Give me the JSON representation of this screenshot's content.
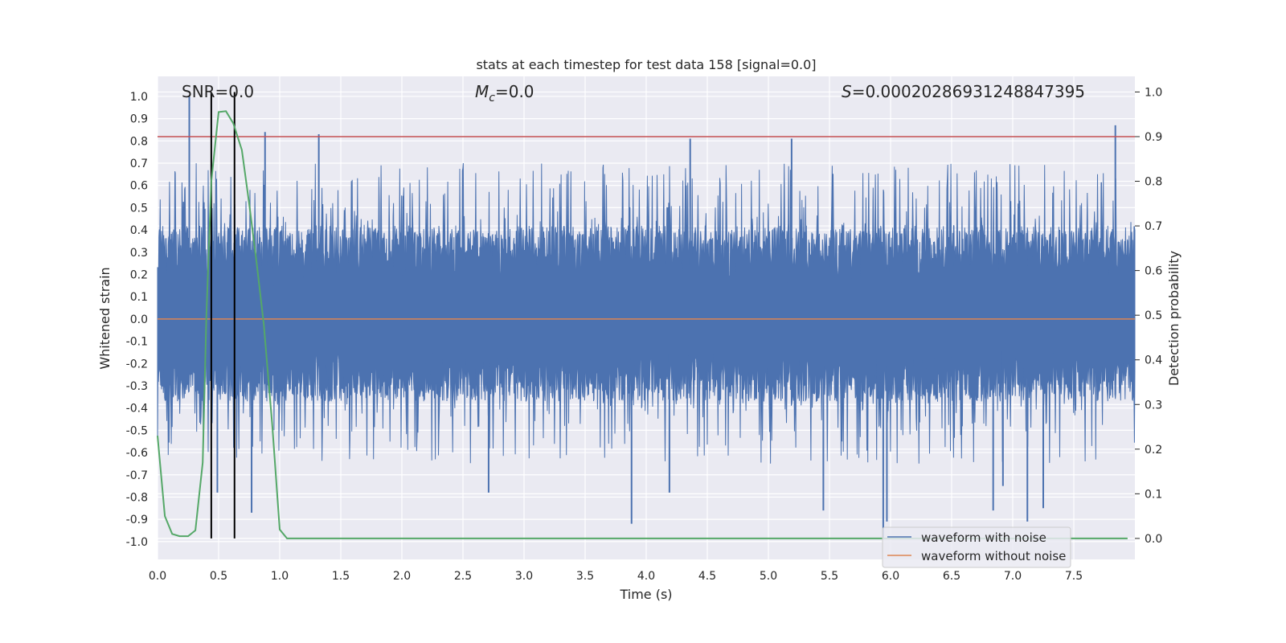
{
  "chart_data": {
    "type": "line",
    "title": "stats at each timestep for test data 158 [signal=0.0]",
    "xlabel": "Time (s)",
    "ylabel_left": "Whitened strain",
    "ylabel_right": "Detection probability",
    "xlim": [
      0.0,
      8.0
    ],
    "ylim_left": [
      -1.08,
      1.09
    ],
    "ylim_right": [
      -0.047,
      1.035
    ],
    "x_ticks": [
      "0.0",
      "0.5",
      "1.0",
      "1.5",
      "2.0",
      "2.5",
      "3.0",
      "3.5",
      "4.0",
      "4.5",
      "5.0",
      "5.5",
      "6.0",
      "6.5",
      "7.0",
      "7.5"
    ],
    "y_ticks_left": [
      "-1.0",
      "-0.9",
      "-0.8",
      "-0.7",
      "-0.6",
      "-0.5",
      "-0.4",
      "-0.3",
      "-0.2",
      "-0.1",
      "0.0",
      "0.1",
      "0.2",
      "0.3",
      "0.4",
      "0.5",
      "0.6",
      "0.7",
      "0.8",
      "0.9",
      "1.0"
    ],
    "y_ticks_right": [
      "0.0",
      "0.1",
      "0.2",
      "0.3",
      "0.4",
      "0.5",
      "0.6",
      "0.7",
      "0.8",
      "0.9",
      "1.0"
    ],
    "grid": true,
    "annotations": {
      "snr": "SNR=0.0",
      "mc_symbol": "M",
      "mc_sub": "c",
      "mc_value": "=0.0",
      "s_symbol": "S",
      "s_value": "=0.00020286931248847395"
    },
    "threshold_right": 0.9,
    "zero_line": 0.0,
    "vlines_x": [
      0.44,
      0.63
    ],
    "series": [
      {
        "name": "waveform with noise",
        "color": "#4c72b0",
        "kind": "noise",
        "n_samples": 2200,
        "typical_max": 0.42,
        "typical_min": -0.37
      },
      {
        "name": "waveform without noise",
        "color": "#dd8452",
        "kind": "flat",
        "value": 0.0
      },
      {
        "color": "#55a868",
        "axis": "right",
        "x": [
          0.0,
          0.06,
          0.12,
          0.18,
          0.25,
          0.31,
          0.37,
          0.4,
          0.44,
          0.5,
          0.56,
          0.62,
          0.69,
          0.75,
          0.81,
          0.87,
          0.94,
          1.0,
          1.06,
          1.12,
          7.94
        ],
        "values": [
          0.23,
          0.05,
          0.01,
          0.005,
          0.005,
          0.018,
          0.17,
          0.5,
          0.8,
          0.955,
          0.957,
          0.93,
          0.87,
          0.75,
          0.62,
          0.48,
          0.25,
          0.02,
          0.0,
          0.0,
          0.0
        ]
      }
    ],
    "spikes": [
      {
        "x": 0.26,
        "y": 1.0
      },
      {
        "x": 0.88,
        "y": 0.84
      },
      {
        "x": 1.32,
        "y": 0.83
      },
      {
        "x": 4.36,
        "y": 0.81
      },
      {
        "x": 5.19,
        "y": 0.81
      },
      {
        "x": 7.84,
        "y": 0.87
      },
      {
        "x": 0.77,
        "y": -0.87
      },
      {
        "x": 3.88,
        "y": -0.92
      },
      {
        "x": 5.94,
        "y": -0.99
      },
      {
        "x": 7.12,
        "y": -0.91
      },
      {
        "x": 5.45,
        "y": -0.86
      },
      {
        "x": 6.84,
        "y": -0.86
      },
      {
        "x": 0.49,
        "y": -0.78
      },
      {
        "x": 2.71,
        "y": -0.78
      },
      {
        "x": 4.19,
        "y": -0.78
      },
      {
        "x": 5.97,
        "y": -0.91
      },
      {
        "x": 6.92,
        "y": -0.75
      },
      {
        "x": 7.25,
        "y": -0.85
      }
    ],
    "legend": {
      "placement": "lower-right"
    }
  }
}
